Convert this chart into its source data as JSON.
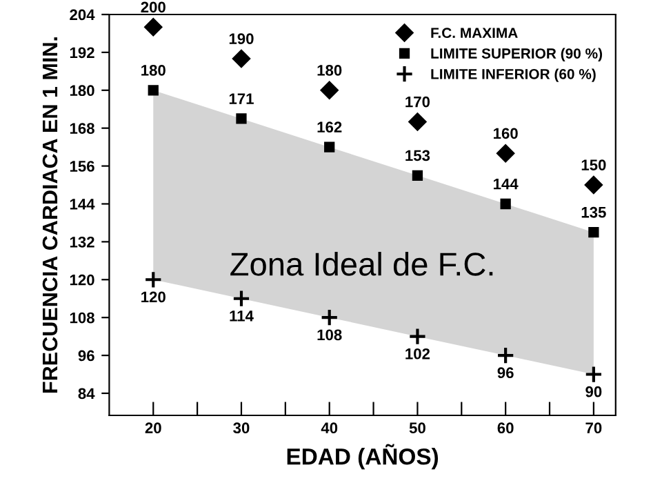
{
  "chart_data": {
    "type": "scatter",
    "xlabel": "EDAD (AÑOS)",
    "ylabel": "FRECUENCIA CARDIACA EN 1 MIN.",
    "x": [
      20,
      30,
      40,
      50,
      60,
      70
    ],
    "series": [
      {
        "name": "F.C. MAXIMA",
        "color": "#000000",
        "marker": "diamond",
        "values": [
          200,
          190,
          180,
          170,
          160,
          150
        ]
      },
      {
        "name": "LIMITE SUPERIOR (90 %)",
        "color": "#000000",
        "marker": "square",
        "values": [
          180,
          171,
          162,
          153,
          144,
          135
        ],
        "lower": [
          120,
          114,
          108,
          102,
          96,
          90
        ],
        "upper": [
          180,
          171,
          162,
          153,
          144,
          135
        ]
      },
      {
        "name": "LIMITE INFERIOR (60 %)",
        "color": "#000000",
        "marker": "cross",
        "values": [
          120,
          114,
          108,
          102,
          96,
          90
        ]
      }
    ],
    "annotations": [
      "Zona Ideal de F.C."
    ],
    "xlim": [
      15,
      72.5
    ],
    "ylim": [
      77,
      204
    ],
    "xticks": [
      20,
      {
        "value": 25,
        "label": null
      },
      30,
      {
        "value": 35,
        "label": null
      },
      40,
      {
        "value": 45,
        "label": null
      },
      50,
      {
        "value": 55,
        "label": null
      },
      60,
      {
        "value": 65,
        "label": null
      },
      70
    ],
    "yticks": [
      84,
      96,
      108,
      120,
      132,
      144,
      156,
      168,
      180,
      192,
      204
    ],
    "data_labels": true,
    "legend": "top right",
    "grid": false
  }
}
